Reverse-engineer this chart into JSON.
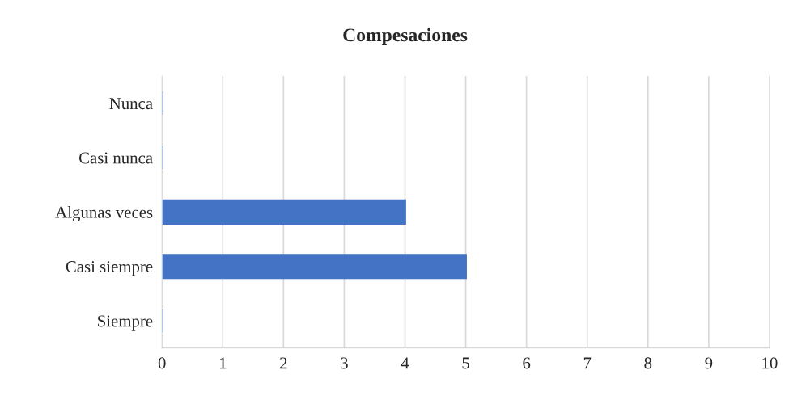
{
  "chart_data": {
    "type": "bar",
    "orientation": "horizontal",
    "title": "Compesaciones",
    "categories": [
      "Nunca",
      "Casi nunca",
      "Algunas veces",
      "Casi siempre",
      "Siempre"
    ],
    "values": [
      0,
      0,
      4,
      5,
      0
    ],
    "color": "#4472c4",
    "xlim": [
      0,
      10
    ],
    "xticks": [
      0,
      1,
      2,
      3,
      4,
      5,
      6,
      7,
      8,
      9,
      10
    ],
    "grid": "x",
    "legend": false
  }
}
